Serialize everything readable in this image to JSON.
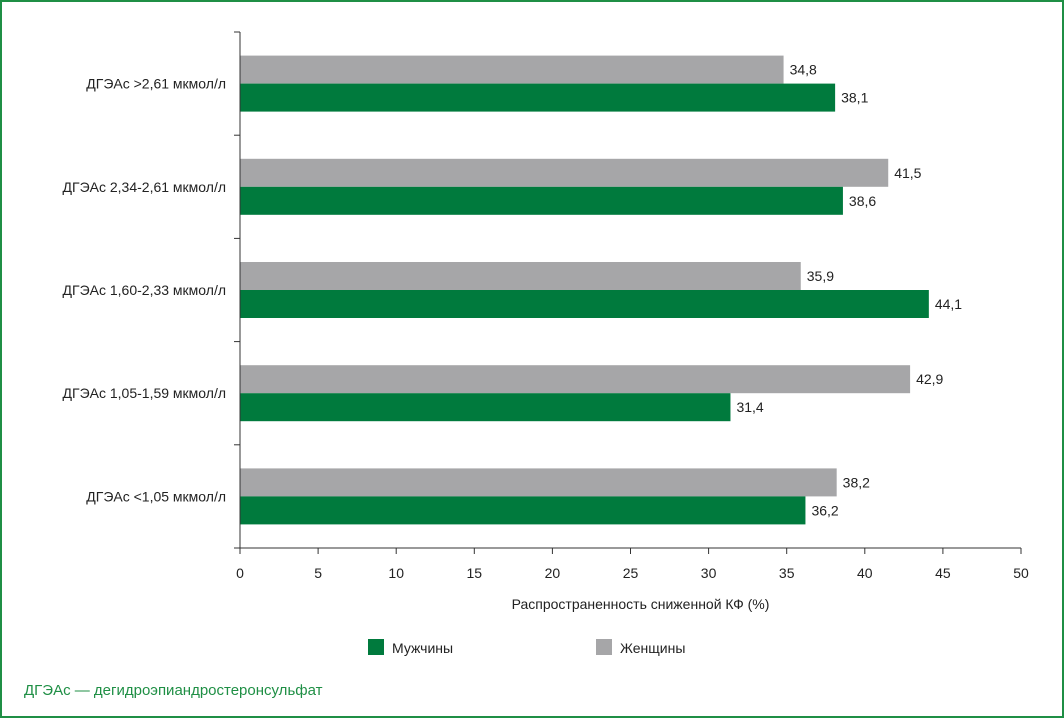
{
  "chart_data": {
    "type": "bar",
    "orientation": "horizontal",
    "categories": [
      "ДГЭАс >2,61 мкмол/л",
      "ДГЭАс 2,34-2,61 мкмол/л",
      "ДГЭАс 1,60-2,33 мкмол/л",
      "ДГЭАс 1,05-1,59 мкмол/л",
      "ДГЭАс <1,05 мкмол/л"
    ],
    "series": [
      {
        "name": "Женщины",
        "color": "#a6a6a8",
        "values": [
          34.8,
          41.5,
          35.9,
          42.9,
          38.2
        ],
        "labels": [
          "34,8",
          "41,5",
          "35,9",
          "42,9",
          "38,2"
        ]
      },
      {
        "name": "Мужчины",
        "color": "#007a3d",
        "values": [
          38.1,
          38.6,
          44.1,
          31.4,
          36.2
        ],
        "labels": [
          "38,1",
          "38,6",
          "44,1",
          "31,4",
          "36,2"
        ]
      }
    ],
    "xlim": [
      0,
      50
    ],
    "xticks": [
      0,
      5,
      10,
      15,
      20,
      25,
      30,
      35,
      40,
      45,
      50
    ],
    "xlabel": "Распространенность сниженной КФ (%)",
    "legend": {
      "placement": "bottom",
      "items": [
        {
          "label": "Мужчины",
          "color": "#007a3d"
        },
        {
          "label": "Женщины",
          "color": "#a6a6a8"
        }
      ]
    },
    "grid": false
  },
  "footnote": "ДГЭАс — дегидроэпиандростеронсульфат"
}
